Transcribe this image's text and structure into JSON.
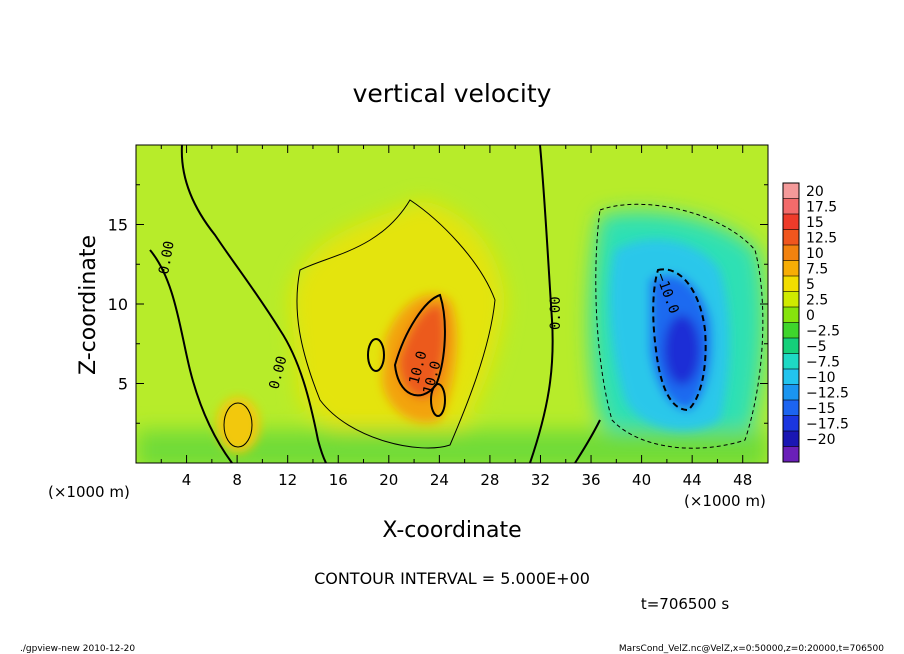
{
  "chart_data": {
    "type": "heatmap",
    "title": "vertical velocity",
    "xlabel": "X-coordinate",
    "ylabel": "Z-coordinate",
    "x_unit": "(×1000 m)",
    "y_unit": "(×1000 m)",
    "xlim": [
      0,
      50
    ],
    "ylim": [
      0,
      20
    ],
    "x_ticks": [
      4,
      8,
      12,
      16,
      20,
      24,
      28,
      32,
      36,
      40,
      44,
      48
    ],
    "y_ticks": [
      5,
      10,
      15
    ],
    "colorbar": {
      "levels": [
        20,
        17.5,
        15,
        12.5,
        10,
        7.5,
        5,
        2.5,
        0,
        -2.5,
        -5,
        -7.5,
        -10,
        -12.5,
        -15,
        -17.5,
        -20
      ],
      "labels": [
        "20",
        "17.5",
        "15",
        "12.5",
        "10",
        "7.5",
        "5",
        "2.5",
        "0",
        "−2.5",
        "−5",
        "−7.5",
        "−10",
        "−12.5",
        "−15",
        "−17.5",
        "−20"
      ],
      "colors": [
        "#f49a9a",
        "#f36b6b",
        "#ee3b2a",
        "#f0561e",
        "#f2820f",
        "#f7ad05",
        "#f2dd00",
        "#cfea00",
        "#86e40c",
        "#3fd52c",
        "#15d07a",
        "#1ed9c4",
        "#22c4ee",
        "#1a95f0",
        "#1c64f0",
        "#1b36e0",
        "#1a16b3",
        "#6a1fb8"
      ]
    },
    "contour_labels": [
      "0.00",
      "0.00",
      "0.00",
      "10.0",
      "10.0",
      "−10.0"
    ],
    "contour_interval_text": "CONTOUR INTERVAL = 5.000E+00",
    "time_text": "t=706500 s"
  },
  "footer": {
    "left": "./gpview-new  2010-12-20",
    "right": "MarsCond_VelZ.nc@VelZ,x=0:50000,z=0:20000,t=706500"
  }
}
